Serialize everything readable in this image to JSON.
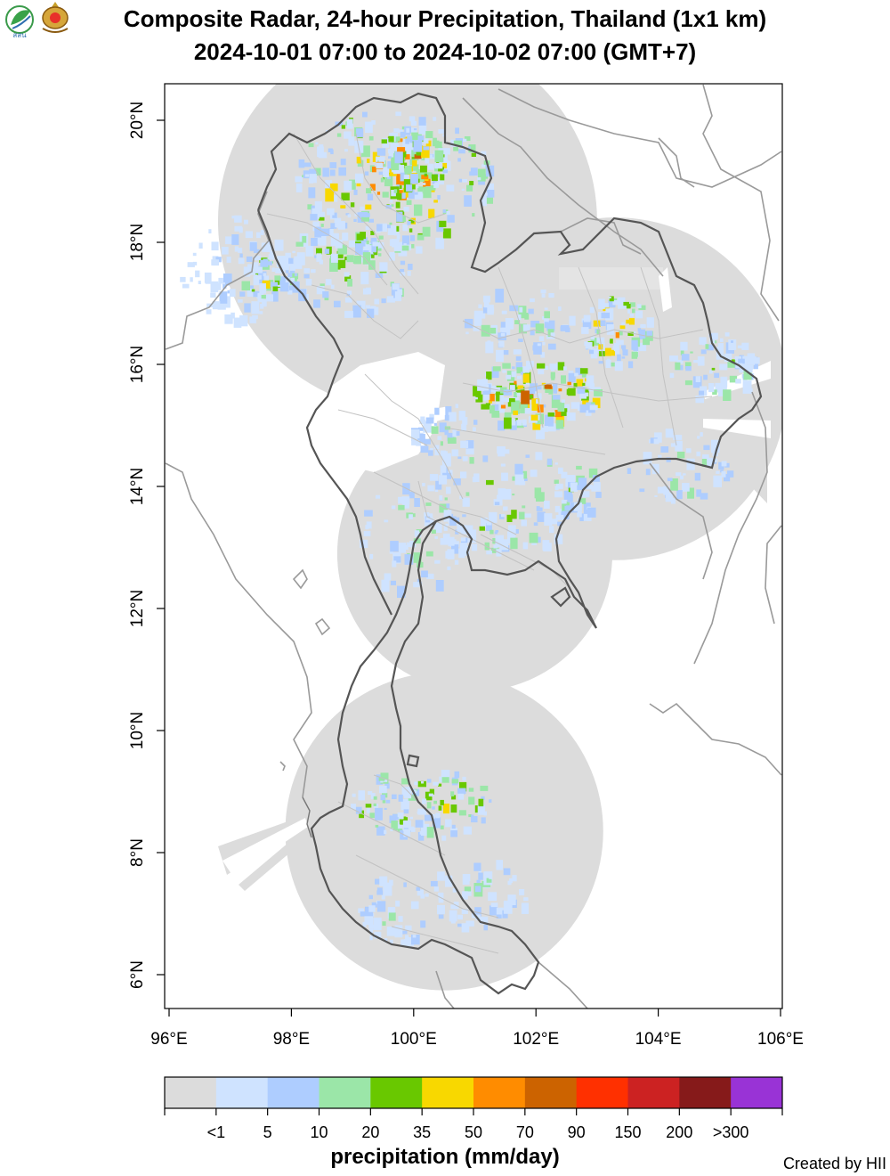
{
  "title_line1": "Composite Radar, 24-hour Precipitation, Thailand (1x1 km)",
  "title_line2": "2024-10-01 07:00 to 2024-10-02 07:00 (GMT+7)",
  "logos": [
    "agency-leaf-logo",
    "royal-emblem-logo"
  ],
  "logo_text": "สสน",
  "x_ticks": [
    "96°E",
    "98°E",
    "100°E",
    "102°E",
    "104°E",
    "106°E"
  ],
  "x_tick_values": [
    96,
    98,
    100,
    102,
    104,
    106
  ],
  "y_ticks": [
    "6°N",
    "8°N",
    "10°N",
    "12°N",
    "14°N",
    "16°N",
    "18°N",
    "20°N"
  ],
  "y_tick_values": [
    6,
    8,
    10,
    12,
    14,
    16,
    18,
    20
  ],
  "extent": {
    "lon": [
      95.9,
      106.0
    ],
    "lat": [
      5.45,
      20.6
    ]
  },
  "colorbar": {
    "title": "precipitation (mm/day)",
    "labels": [
      "<1",
      "5",
      "10",
      "20",
      "35",
      "50",
      "70",
      "90",
      "150",
      "200",
      ">300"
    ],
    "colors": [
      "#dcdcdc",
      "#cfe3ff",
      "#aecdff",
      "#9be6a8",
      "#69c800",
      "#f8d800",
      "#ff8c00",
      "#cc6300",
      "#ff3000",
      "#cc2222",
      "#861a1a",
      "#9933d6"
    ]
  },
  "radars": [
    {
      "name": "north",
      "lon": 99.9,
      "lat": 18.35,
      "r_deg": 3.1
    },
    {
      "name": "northeast",
      "lon": 103.3,
      "lat": 15.6,
      "r_deg": 2.8
    },
    {
      "name": "central",
      "lon": 101.0,
      "lat": 12.9,
      "r_deg": 2.25
    },
    {
      "name": "south",
      "lon": 100.5,
      "lat": 8.35,
      "r_deg": 2.6
    }
  ],
  "credit": "Created by HII"
}
